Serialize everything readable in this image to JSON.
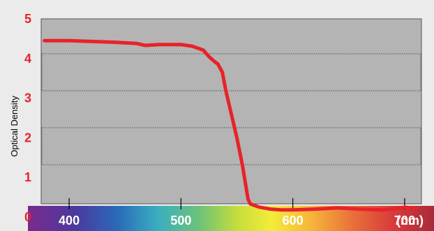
{
  "chart_data": {
    "type": "line",
    "title": "",
    "ylabel": "Optical Density",
    "xunit": "(nm)",
    "xlim": [
      375,
      715
    ],
    "ylim": [
      0,
      5
    ],
    "y_ticks": [
      "0",
      "1",
      "2",
      "3",
      "4",
      "5"
    ],
    "x_ticks": [
      "400",
      "500",
      "600",
      "700"
    ],
    "grid": "dotted bands at 1–2 and 3–4",
    "series": [
      {
        "color": "#e8222a",
        "x": [
          378,
          400,
          420,
          440,
          460,
          468,
          480,
          500,
          510,
          520,
          525,
          530,
          533,
          537,
          540,
          545,
          550,
          555,
          560,
          562,
          565,
          570,
          580,
          590,
          600,
          620,
          640,
          660,
          680,
          690,
          700,
          710
        ],
        "y": [
          4.45,
          4.45,
          4.43,
          4.41,
          4.38,
          4.33,
          4.35,
          4.35,
          4.31,
          4.21,
          4.05,
          3.92,
          3.86,
          3.65,
          3.2,
          2.6,
          2.0,
          1.3,
          0.45,
          0.33,
          0.3,
          0.25,
          0.2,
          0.18,
          0.18,
          0.2,
          0.23,
          0.2,
          0.18,
          0.21,
          0.25,
          0.22
        ]
      }
    ],
    "colors": {
      "axis_label_color": "#e8222a",
      "plot_background": "#b4b4b4",
      "page_background": "#ebebeb"
    }
  }
}
